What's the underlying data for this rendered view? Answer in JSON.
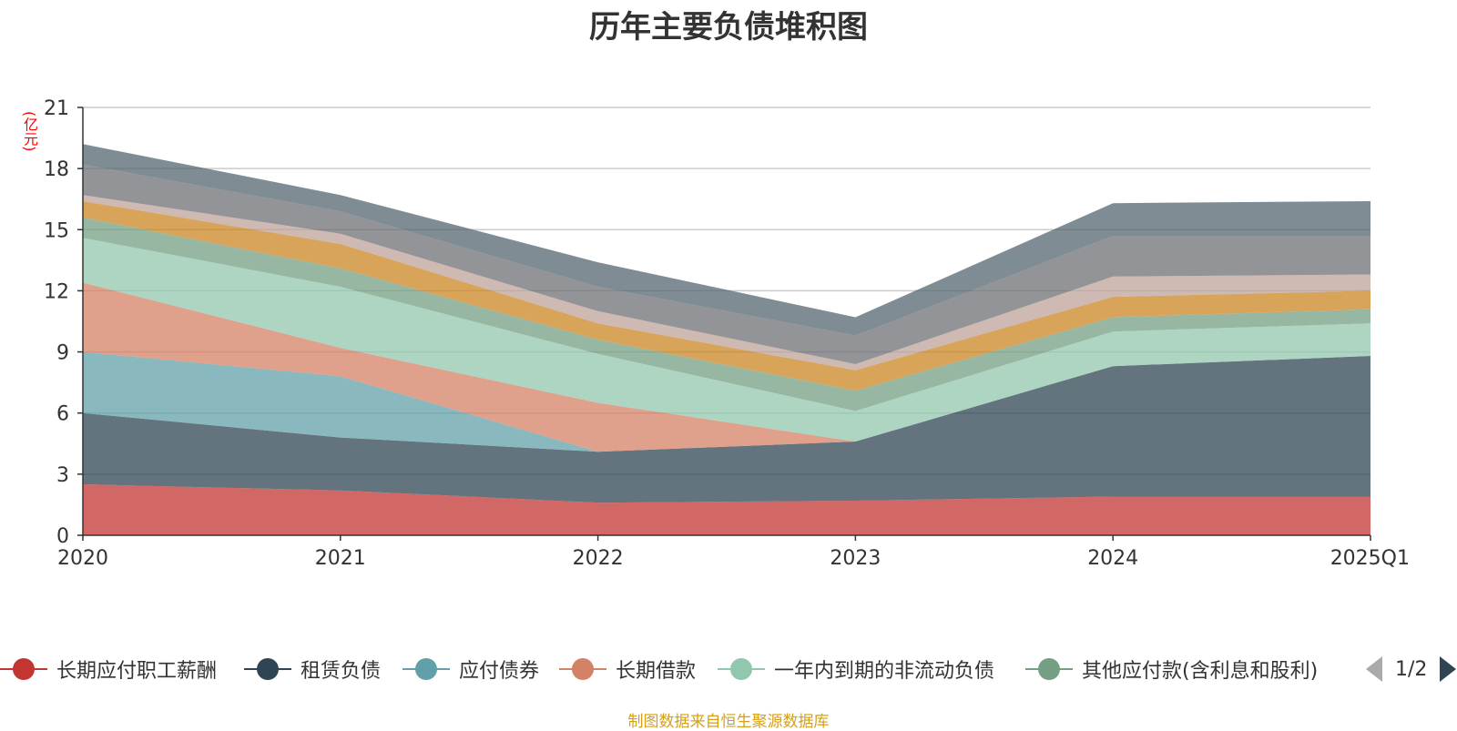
{
  "title": "历年主要负债堆积图",
  "y_unit": "(亿元)",
  "source": "制图数据来自恒生聚源数据库",
  "pager": {
    "text": "1/2"
  },
  "chart_data": {
    "type": "area",
    "stacked": true,
    "categories": [
      "2020",
      "2021",
      "2022",
      "2023",
      "2024",
      "2025Q1"
    ],
    "ylim": [
      0,
      21
    ],
    "yticks": [
      0,
      3,
      6,
      9,
      12,
      15,
      18,
      21
    ],
    "grid": true,
    "series": [
      {
        "name": "长期应付职工薪酬",
        "color": "#c23531",
        "values": [
          2.5,
          2.2,
          1.6,
          1.7,
          1.9,
          1.9
        ]
      },
      {
        "name": "租赁负债",
        "color": "#2f4554",
        "values": [
          3.5,
          2.6,
          2.5,
          2.9,
          6.4,
          6.9
        ]
      },
      {
        "name": "应付债券",
        "color": "#61a0a8",
        "values": [
          3.0,
          3.0,
          0.0,
          0.0,
          0.0,
          0.0
        ]
      },
      {
        "name": "长期借款",
        "color": "#d48265",
        "values": [
          3.4,
          1.4,
          2.4,
          0.0,
          0.0,
          0.0
        ]
      },
      {
        "name": "一年内到期的非流动负债",
        "color": "#91c7ae",
        "values": [
          2.2,
          3.0,
          2.4,
          1.5,
          1.7,
          1.6
        ]
      },
      {
        "name": "其他应付款(含利息和股利)",
        "color": "#749f83",
        "values": [
          1.0,
          0.9,
          0.7,
          1.0,
          0.7,
          0.7
        ]
      },
      {
        "name": "",
        "color": "#ca8622",
        "values": [
          0.8,
          1.2,
          0.8,
          1.0,
          1.0,
          0.9
        ]
      },
      {
        "name": "",
        "color": "#bda29a",
        "values": [
          0.3,
          0.5,
          0.6,
          0.3,
          1.0,
          0.8
        ]
      },
      {
        "name": "",
        "color": "#6e7074",
        "values": [
          1.5,
          1.1,
          1.2,
          1.4,
          2.0,
          1.9
        ]
      },
      {
        "name": "",
        "color": "#546570",
        "values": [
          1.0,
          0.8,
          1.2,
          0.9,
          1.6,
          1.7
        ]
      }
    ]
  }
}
